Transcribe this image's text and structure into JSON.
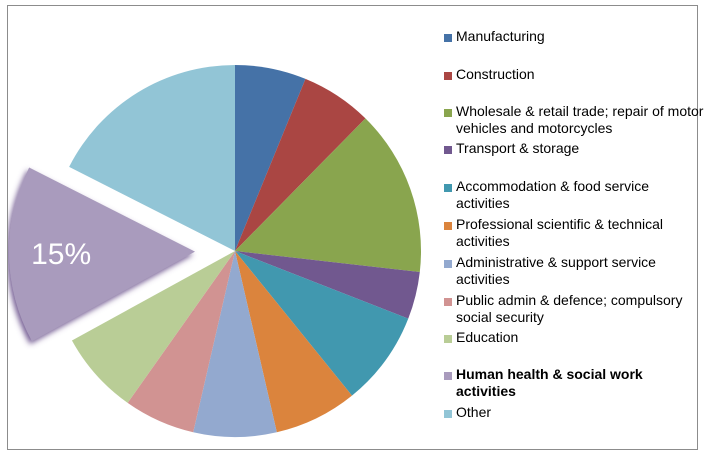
{
  "chart_data": {
    "type": "pie",
    "title": "",
    "slices": [
      {
        "label": "Manufacturing",
        "value": 6,
        "color": "#4572A7"
      },
      {
        "label": "Construction",
        "value": 6,
        "color": "#AA4643"
      },
      {
        "label": "Wholesale & retail trade; repair of motor vehicles and motorcycles",
        "value": 14,
        "color": "#89A54E"
      },
      {
        "label": "Transport & storage",
        "value": 4,
        "color": "#71588F"
      },
      {
        "label": "Accommodation & food service activities",
        "value": 8,
        "color": "#4198AF"
      },
      {
        "label": "Professional scientific & technical activities",
        "value": 7,
        "color": "#DB843D"
      },
      {
        "label": "Administrative & support service activities",
        "value": 7,
        "color": "#93A9CF"
      },
      {
        "label": "Public admin & defence; compulsory social security",
        "value": 6,
        "color": "#D19392"
      },
      {
        "label": "Education",
        "value": 7,
        "color": "#B9CD96"
      },
      {
        "label": "Human health & social work activities",
        "value": 15,
        "color": "#A99BBD",
        "exploded": true,
        "data_label": "15%",
        "legend_bold": true
      },
      {
        "label": "Other",
        "value": 17,
        "color": "#92C5D6"
      }
    ],
    "legend_position": "right"
  }
}
